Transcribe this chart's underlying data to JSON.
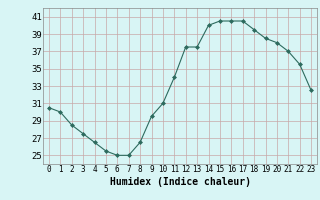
{
  "x": [
    0,
    1,
    2,
    3,
    4,
    5,
    6,
    7,
    8,
    9,
    10,
    11,
    12,
    13,
    14,
    15,
    16,
    17,
    18,
    19,
    20,
    21,
    22,
    23
  ],
  "y": [
    30.5,
    30.0,
    28.5,
    27.5,
    26.5,
    25.5,
    25.0,
    25.0,
    26.5,
    29.5,
    31.0,
    34.0,
    37.5,
    37.5,
    40.0,
    40.5,
    40.5,
    40.5,
    39.5,
    38.5,
    38.0,
    37.0,
    35.5,
    32.5
  ],
  "xlim": [
    -0.5,
    23.5
  ],
  "ylim": [
    24.0,
    42.0
  ],
  "yticks": [
    25,
    27,
    29,
    31,
    33,
    35,
    37,
    39,
    41
  ],
  "xticks": [
    0,
    1,
    2,
    3,
    4,
    5,
    6,
    7,
    8,
    9,
    10,
    11,
    12,
    13,
    14,
    15,
    16,
    17,
    18,
    19,
    20,
    21,
    22,
    23
  ],
  "xlabel": "Humidex (Indice chaleur)",
  "line_color": "#2d6b5e",
  "marker": "D",
  "marker_size": 2.0,
  "bg_color": "#d8f5f5",
  "grid_color": "#c8a8a8",
  "xlabel_fontsize": 7,
  "ytick_fontsize": 6.5,
  "xtick_fontsize": 5.5
}
